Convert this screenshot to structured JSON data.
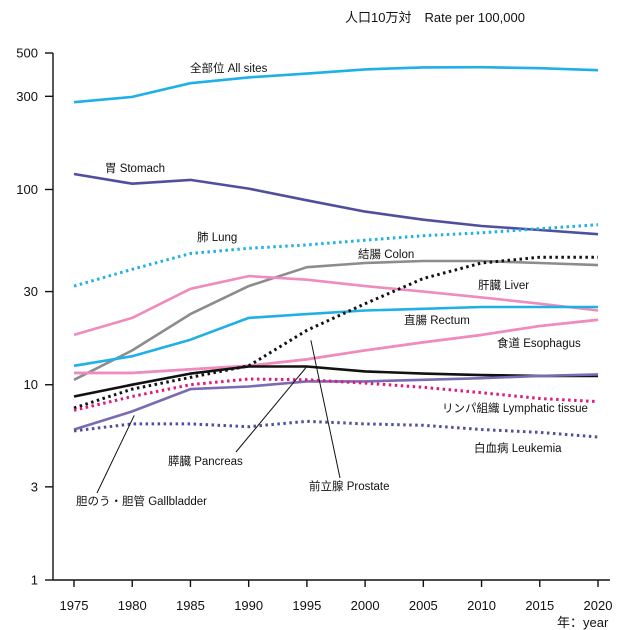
{
  "chart_data": {
    "type": "line",
    "title": "人口10万対　Rate per 100,000",
    "xlabel": "年：year",
    "ylabel": "",
    "yscale": "log",
    "xlim": [
      1975,
      2020
    ],
    "ylim": [
      1,
      500
    ],
    "x_ticks": [
      "1975",
      "1980",
      "1985",
      "1990",
      "1995",
      "2000",
      "2005",
      "2010",
      "2015",
      "2020"
    ],
    "y_ticks": [
      {
        "value": 1,
        "label": "1"
      },
      {
        "value": 3,
        "label": "3"
      },
      {
        "value": 10,
        "label": "10"
      },
      {
        "value": 30,
        "label": "30"
      },
      {
        "value": 100,
        "label": "100"
      },
      {
        "value": 300,
        "label": "300"
      },
      {
        "value": 500,
        "label": "500"
      }
    ],
    "grid": false,
    "x": [
      1975,
      1980,
      1985,
      1990,
      1995,
      2000,
      2005,
      2010,
      2015,
      2020
    ],
    "series": [
      {
        "name": "全部位 All sites",
        "color": "#1fb0e6",
        "style": "solid",
        "values": [
          280,
          298,
          350,
          375,
          392,
          412,
          422,
          423,
          418,
          408
        ]
      },
      {
        "name": "胃 Stomach",
        "color": "#4f4f9e",
        "style": "solid",
        "values": [
          120,
          107,
          112,
          101,
          88,
          77,
          70,
          65,
          62,
          59
        ]
      },
      {
        "name": "肺 Lung",
        "color": "#1fb0e6",
        "style": "dotted",
        "values": [
          32,
          39,
          47,
          50,
          52,
          55,
          58,
          60,
          63,
          66
        ]
      },
      {
        "name": "結腸 Colon",
        "color": "#8c8c8c",
        "style": "solid",
        "values": [
          10.6,
          15,
          23,
          32,
          40,
          42,
          43,
          43,
          42,
          41
        ]
      },
      {
        "name": "肝臓 Liver",
        "color": "#ef8bbd",
        "style": "solid",
        "values": [
          18,
          22,
          31,
          36,
          34.5,
          32,
          30,
          28,
          26,
          24
        ]
      },
      {
        "name": "直腸 Rectum",
        "color": "#1fb0e6",
        "style": "solid",
        "values": [
          12.5,
          14,
          17,
          22,
          23,
          24,
          24.5,
          25,
          25,
          25
        ]
      },
      {
        "name": "食道 Esophagus",
        "color": "#ef8bbd",
        "style": "solid",
        "values": [
          11.5,
          11.5,
          12,
          12.5,
          13.5,
          15,
          16.5,
          18,
          20,
          21.5
        ]
      },
      {
        "name": "膵臓 Pancreas",
        "color": "#ef8bbd",
        "style": "solid",
        "values": [
          11.5,
          11.5,
          12,
          12.5,
          13.5,
          15,
          16.5,
          18,
          20,
          21.5
        ]
      },
      {
        "name": "前立腺 Prostate",
        "color": "#111111",
        "style": "dotted",
        "values": [
          7.6,
          9.5,
          10.9,
          12.5,
          19,
          26,
          35,
          42,
          45,
          45
        ]
      },
      {
        "name": "",
        "color": "#111111",
        "style": "solid",
        "values": [
          8.7,
          10,
          11.4,
          12.4,
          12.4,
          11.7,
          11.4,
          11.2,
          11.1,
          11.1
        ]
      },
      {
        "name": "胆のう・胆管 Gallbladder",
        "color": "#7a6bb2",
        "style": "solid",
        "values": [
          5.9,
          7.3,
          9.5,
          9.8,
          10.4,
          10.4,
          10.6,
          10.8,
          11.1,
          11.3
        ]
      },
      {
        "name": "リンパ組織 Lymphatic tissue",
        "color": "#e0197d",
        "style": "dotted",
        "values": [
          7.4,
          8.7,
          10,
          10.7,
          10.6,
          10.2,
          9.7,
          9.1,
          8.5,
          8.2
        ]
      },
      {
        "name": "白血病 Leukemia",
        "color": "#4f4f9e",
        "style": "dotted",
        "values": [
          5.8,
          6.3,
          6.3,
          6.1,
          6.5,
          6.3,
          6.2,
          5.9,
          5.7,
          5.4
        ]
      }
    ],
    "labels": {
      "all_sites": "全部位 All sites",
      "stomach": "胃 Stomach",
      "lung": "肺 Lung",
      "colon": "結腸 Colon",
      "liver": "肝臓 Liver",
      "rectum": "直腸 Rectum",
      "esophagus": "食道 Esophagus",
      "lymphatic": "リンパ組織 Lymphatic tissue",
      "leukemia": "白血病 Leukemia",
      "pancreas": "膵臓 Pancreas",
      "prostate": "前立腺 Prostate",
      "gallbladder": "胆のう・胆管 Gallbladder"
    }
  }
}
